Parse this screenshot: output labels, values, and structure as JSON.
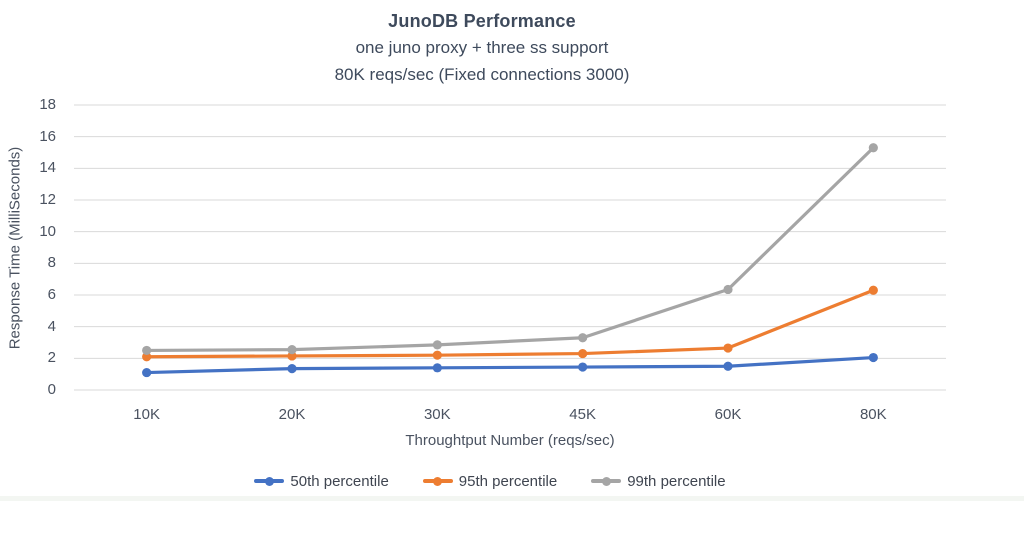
{
  "chart_data": {
    "type": "line",
    "title": "JunoDB Performance",
    "subtitle_lines": [
      "one juno proxy + three ss support",
      "80K reqs/sec (Fixed connections 3000)"
    ],
    "xlabel": "Throughtput Number (reqs/sec)",
    "ylabel": "Response Time (MilliSeconds)",
    "categories": [
      "10K",
      "20K",
      "30K",
      "45K",
      "60K",
      "80K"
    ],
    "series": [
      {
        "name": "50th percentile",
        "color": "#4472C4",
        "values": [
          1.1,
          1.35,
          1.4,
          1.45,
          1.5,
          2.05
        ]
      },
      {
        "name": "95th percentile",
        "color": "#ED7D31",
        "values": [
          2.1,
          2.15,
          2.2,
          2.3,
          2.65,
          6.3
        ]
      },
      {
        "name": "99th percentile",
        "color": "#A5A5A5",
        "values": [
          2.5,
          2.55,
          2.85,
          3.3,
          6.35,
          15.3
        ]
      }
    ],
    "ylim": [
      0,
      18
    ],
    "ytick_step": 2,
    "yticks": [
      "0",
      "2",
      "4",
      "6",
      "8",
      "10",
      "12",
      "14",
      "16",
      "18"
    ],
    "grid": "horizontal",
    "legend_position": "bottom",
    "marker_style": "circle"
  },
  "colors": {
    "title_text": "#3E4A5C",
    "axis_text": "#4A5260",
    "legend_text": "#3F4550",
    "gridline": "#D9D9D9",
    "background": "#FFFFFF",
    "bottom_strip": "#E9EFE8"
  }
}
